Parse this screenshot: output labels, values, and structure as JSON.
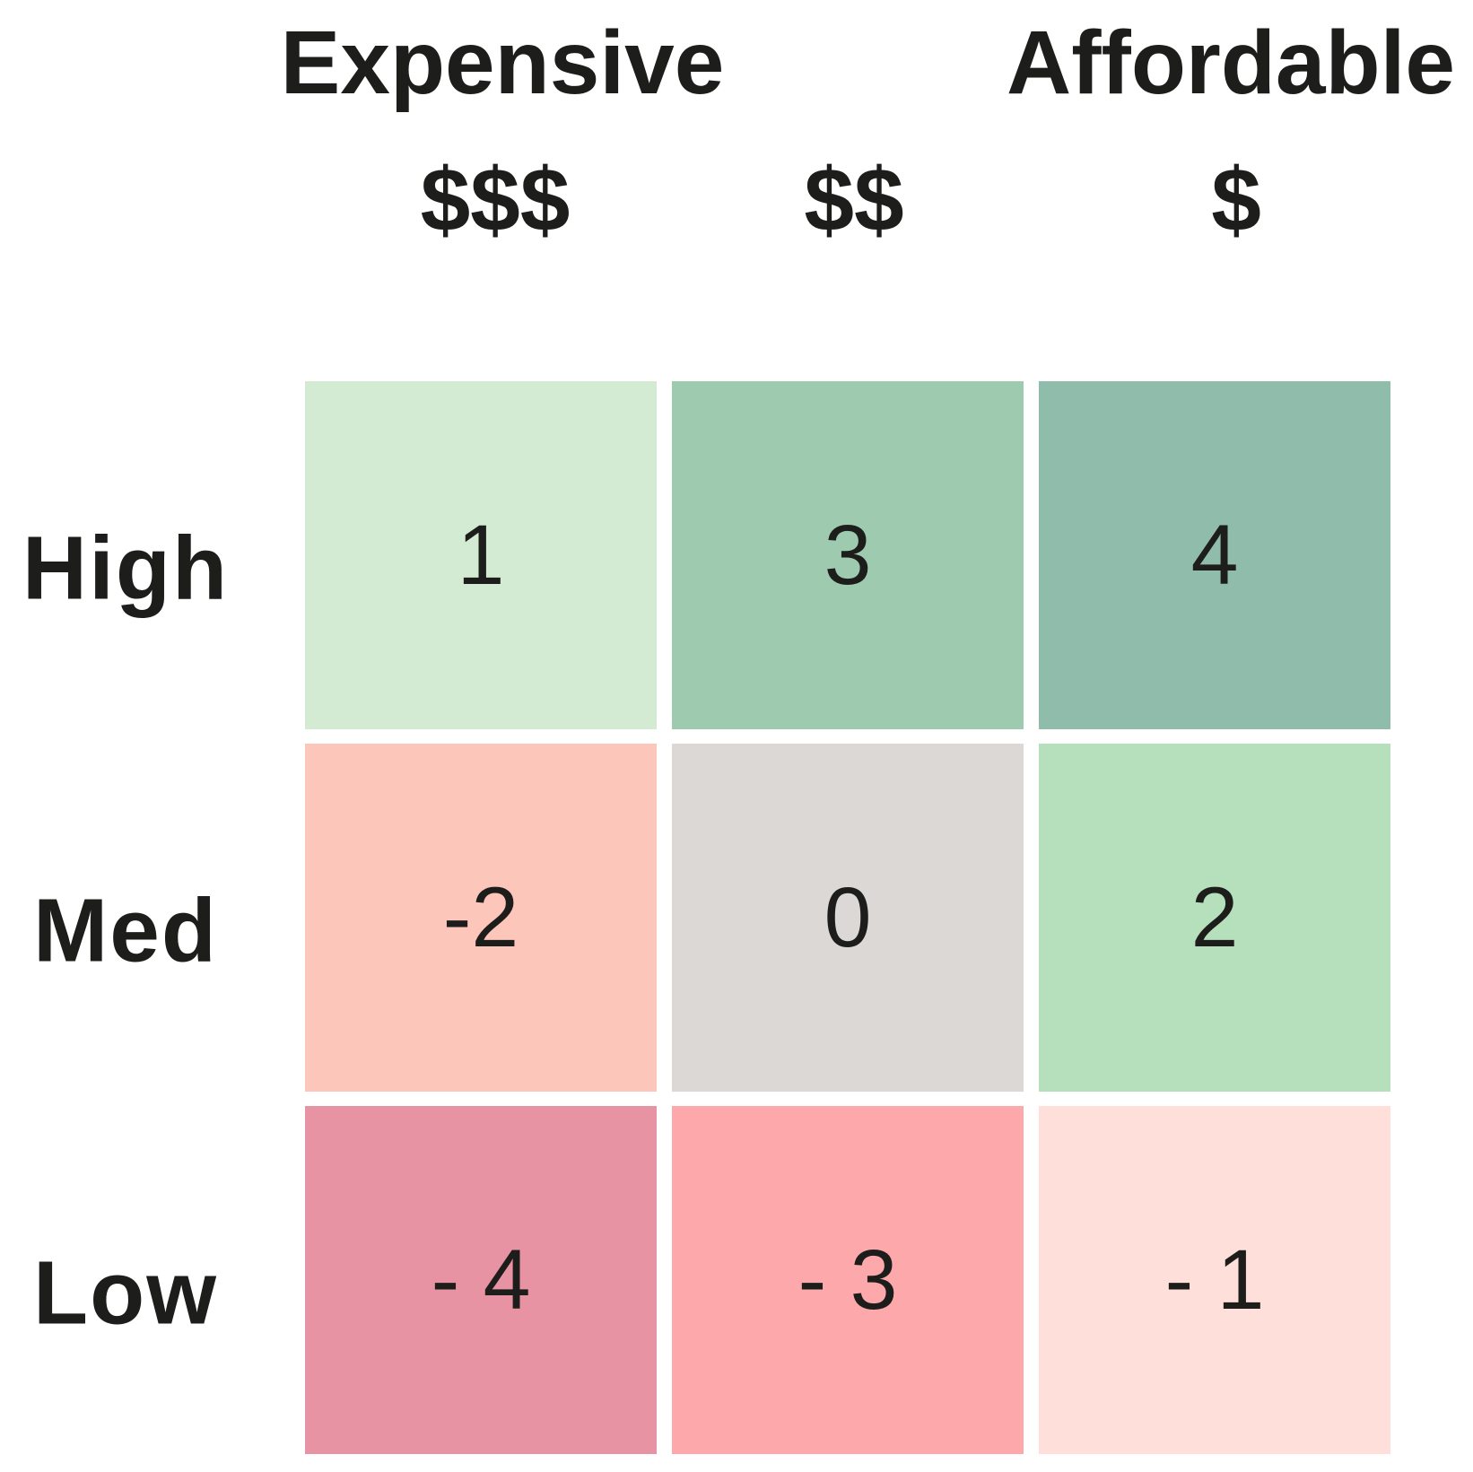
{
  "matrix": {
    "column_group_labels": {
      "expensive": "Expensive",
      "affordable": "Affordable"
    },
    "column_labels": [
      "$$$",
      "$$",
      "$"
    ],
    "row_labels": [
      "High",
      "Med",
      "Low"
    ],
    "cells": [
      [
        {
          "label": "1",
          "bg": "#d3ead3"
        },
        {
          "label": "3",
          "bg": "#9ecab0"
        },
        {
          "label": "4",
          "bg": "#90bcab"
        }
      ],
      [
        {
          "label": "-2",
          "bg": "#fdc6bb"
        },
        {
          "label": "0",
          "bg": "#dcd8d5"
        },
        {
          "label": "2",
          "bg": "#b6dfbc"
        }
      ],
      [
        {
          "label": "- 4",
          "bg": "#e893a3"
        },
        {
          "label": "- 3",
          "bg": "#fda8ab"
        },
        {
          "label": "- 1",
          "bg": "#fedfd9"
        }
      ]
    ],
    "text_color": "#1d1d1b",
    "background_color": "#ffffff"
  },
  "chart_data": {
    "type": "heatmap",
    "title": "",
    "x_categories": [
      "$$$",
      "$$",
      "$"
    ],
    "x_group_labels": [
      {
        "label": "Expensive",
        "over_column": "$$$"
      },
      {
        "label": "Affordable",
        "over_column": "$"
      }
    ],
    "y_categories": [
      "High",
      "Med",
      "Low"
    ],
    "values": [
      [
        1,
        3,
        4
      ],
      [
        -2,
        0,
        2
      ],
      [
        -4,
        -3,
        -1
      ]
    ],
    "value_range": [
      -4,
      4
    ],
    "cell_colors": [
      [
        "#d3ead3",
        "#9ecab0",
        "#90bcab"
      ],
      [
        "#fdc6bb",
        "#dcd8d5",
        "#b6dfbc"
      ],
      [
        "#e893a3",
        "#fda8ab",
        "#fedfd9"
      ]
    ],
    "color_semantics": "green = positive payoff, gray = zero, pink/red = negative payoff",
    "legend": "none",
    "grid": "white gaps between cells"
  }
}
